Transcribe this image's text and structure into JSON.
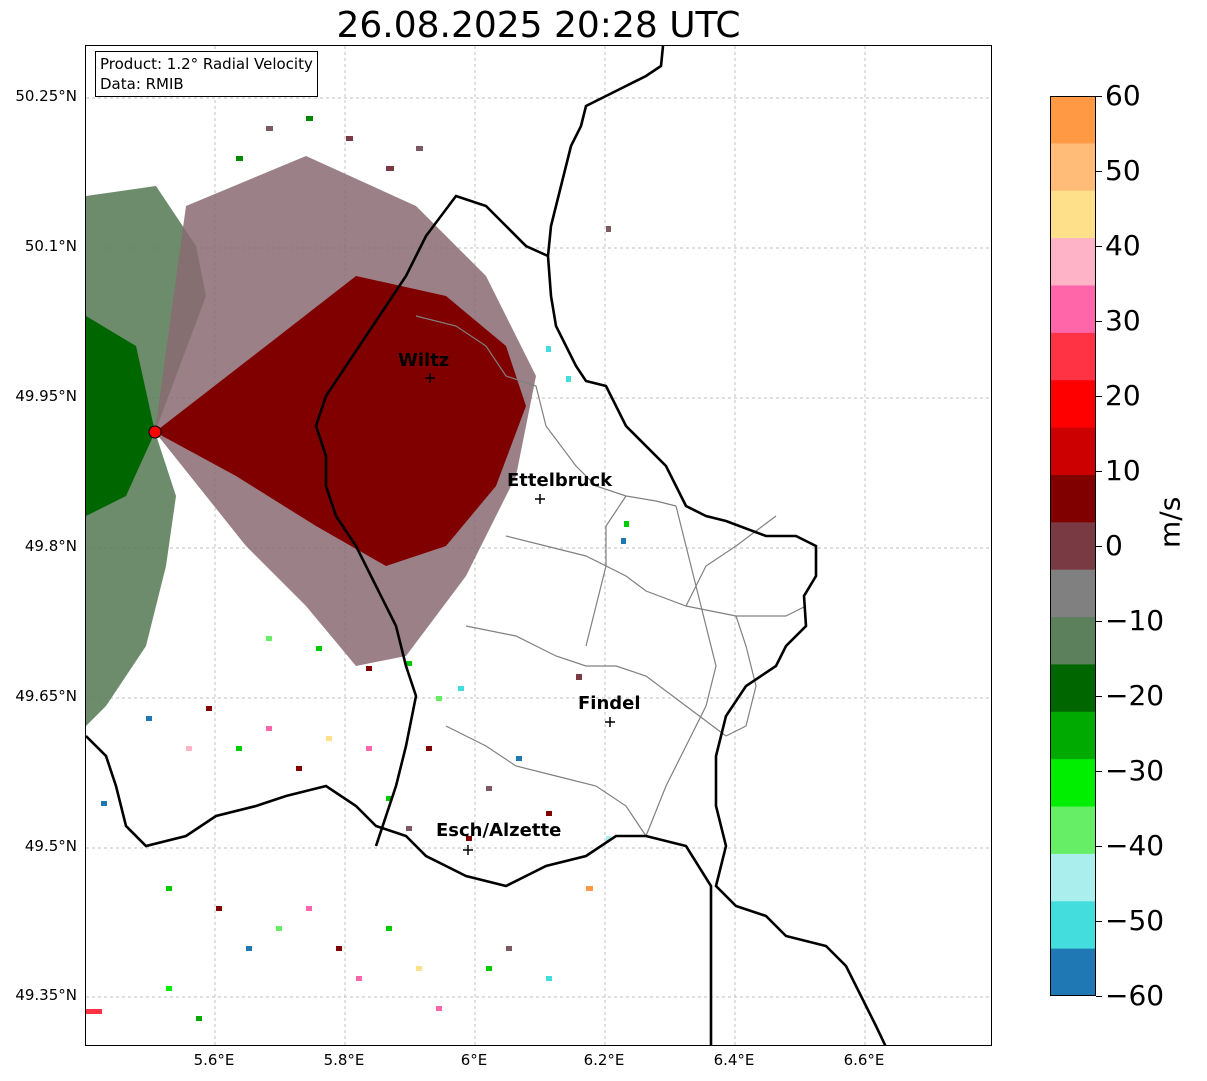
{
  "title": "26.08.2025 20:28 UTC",
  "info": {
    "product": "Product: 1.2° Radial Velocity",
    "data": "Data: RMIB"
  },
  "lat_ticks": [
    "50.25°N",
    "50.1°N",
    "49.95°N",
    "49.8°N",
    "49.65°N",
    "49.5°N",
    "49.35°N"
  ],
  "lon_ticks": [
    "5.6°E",
    "5.8°E",
    "6°E",
    "6.2°E",
    "6.4°E",
    "6.6°E"
  ],
  "cities": [
    {
      "name": "Wiltz"
    },
    {
      "name": "Ettelbruck"
    },
    {
      "name": "Findel"
    },
    {
      "name": "Esch/Alzette"
    }
  ],
  "colorbar": {
    "label": "m/s",
    "ticks": [
      "60",
      "50",
      "40",
      "30",
      "20",
      "10",
      "0",
      "−10",
      "−20",
      "−30",
      "−40",
      "−50",
      "−60"
    ],
    "range": [
      -60,
      60
    ],
    "colors": [
      "#ff9944",
      "#ffbb77",
      "#ffe08a",
      "#ffb3c6",
      "#ff66aa",
      "#ff3344",
      "#ff0000",
      "#cc0000",
      "#800000",
      "#7a3a44",
      "#808080",
      "#5c7f5c",
      "#006600",
      "#00aa00",
      "#00ee00",
      "#66ee66",
      "#aaeeee",
      "#44dddd",
      "#1f77b4"
    ]
  },
  "radar_site_color": "#ff0000"
}
